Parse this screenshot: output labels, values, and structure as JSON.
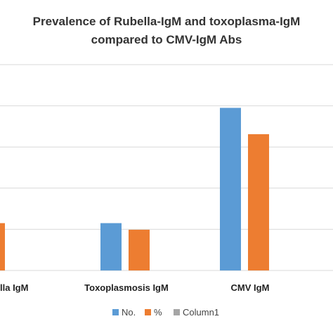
{
  "chart_data": {
    "type": "bar",
    "title": "Prevalence of Rubella-IgM and toxoplasma-IgM compared to CMV-IgM Abs",
    "title_lines": [
      "Prevalence of Rubella-IgM and toxoplasma-IgM",
      "compared to CMV-IgM Abs"
    ],
    "categories": [
      "Rubella IgM",
      "Toxoplasmosis IgM",
      "CMV IgM"
    ],
    "category_labels_visible": [
      "lla IgM",
      "Toxoplasmosis IgM",
      "CMV IgM"
    ],
    "series": [
      {
        "name": "No.",
        "color": "#5B9BD5",
        "values": [
          null,
          11.5,
          39.5
        ]
      },
      {
        "name": "%",
        "color": "#ED7D31",
        "values": [
          11.5,
          9.9,
          33.1
        ]
      },
      {
        "name": "Column1",
        "color": "#A5A5A5",
        "values": [
          0,
          0,
          0
        ]
      }
    ],
    "ylim": [
      0,
      50
    ],
    "grid": true,
    "legend_position": "bottom",
    "xlabel": "",
    "ylabel": ""
  }
}
